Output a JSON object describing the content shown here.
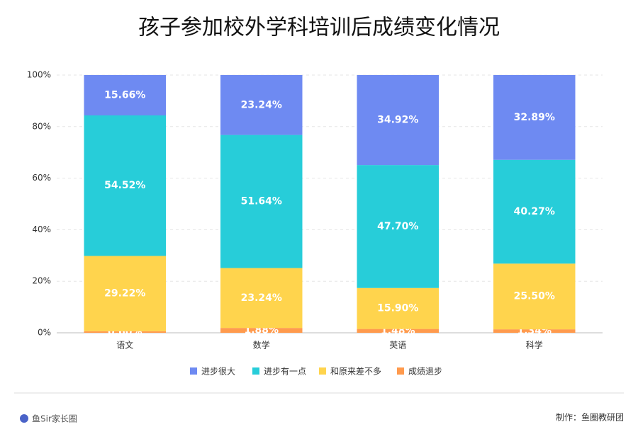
{
  "chart_data": {
    "type": "stacked-bar",
    "title": "孩子参加校外学科培训后成绩变化情况",
    "categories": [
      "语文",
      "数学",
      "英语",
      "科学"
    ],
    "series": [
      {
        "name": "进步很大",
        "color": "#6e8af2",
        "values": [
          15.66,
          23.24,
          34.92,
          32.89
        ],
        "value_labels": [
          "15.66%",
          "23.24%",
          "34.92%",
          "32.89%"
        ]
      },
      {
        "name": "进步有一点",
        "color": "#27cdd9",
        "values": [
          54.52,
          51.64,
          47.7,
          40.27
        ],
        "value_labels": [
          "54.52%",
          "51.64%",
          "47.70%",
          "40.27%"
        ]
      },
      {
        "name": "和原来差不多",
        "color": "#ffd44d",
        "values": [
          29.22,
          23.24,
          15.9,
          25.5
        ],
        "value_labels": [
          "29.22%",
          "23.24%",
          "15.90%",
          "25.50%"
        ]
      },
      {
        "name": "成绩退步",
        "color": "#ff9a4d",
        "values": [
          0.6,
          1.88,
          1.48,
          1.34
        ],
        "value_labels": [
          "0.60%",
          "1.88%",
          "1.48%",
          "1.34%"
        ]
      }
    ],
    "ylim": [
      0,
      100
    ],
    "yticks": [
      {
        "value": 0,
        "label": "0%"
      },
      {
        "value": 20,
        "label": "20%"
      },
      {
        "value": 40,
        "label": "40%"
      },
      {
        "value": 60,
        "label": "60%"
      },
      {
        "value": 80,
        "label": "80%"
      },
      {
        "value": 100,
        "label": "100%"
      }
    ],
    "grid": true,
    "legend": "bottom"
  },
  "footer": {
    "brand": "鱼Sir家长圈",
    "credit": "制作：鱼圈教研团"
  }
}
